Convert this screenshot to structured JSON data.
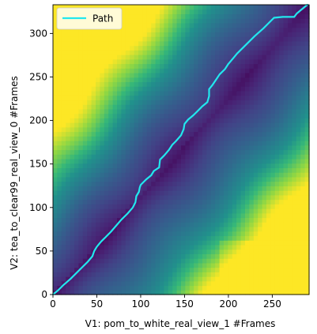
{
  "chart_data": {
    "type": "heatmap",
    "title": "",
    "xlabel": "V1: pom_to_white_real_view_1 #Frames",
    "ylabel": "V2: tea_to_clear99_real_view_0 #Frames",
    "xlim": [
      0,
      292
    ],
    "ylim": [
      0,
      333
    ],
    "x_ticks": [
      0,
      50,
      100,
      150,
      200,
      250
    ],
    "y_ticks": [
      0,
      50,
      100,
      150,
      200,
      250,
      300
    ],
    "legend": {
      "position": "top-left",
      "entries": [
        {
          "label": "Path",
          "color": "#22e8ee"
        }
      ]
    },
    "colormap": "viridis",
    "path": {
      "name": "Path",
      "color": "#22e8ee",
      "points": [
        [
          0,
          0
        ],
        [
          6,
          5
        ],
        [
          12,
          11
        ],
        [
          20,
          18
        ],
        [
          30,
          28
        ],
        [
          40,
          38
        ],
        [
          45,
          44
        ],
        [
          47,
          50
        ],
        [
          50,
          55
        ],
        [
          55,
          61
        ],
        [
          60,
          66
        ],
        [
          66,
          72
        ],
        [
          72,
          79
        ],
        [
          78,
          86
        ],
        [
          85,
          93
        ],
        [
          91,
          100
        ],
        [
          94,
          106
        ],
        [
          95,
          113
        ],
        [
          98,
          118
        ],
        [
          99,
          123
        ],
        [
          100,
          126
        ],
        [
          106,
          132
        ],
        [
          112,
          137
        ],
        [
          115,
          142
        ],
        [
          121,
          146
        ],
        [
          122,
          155
        ],
        [
          127,
          160
        ],
        [
          132,
          166
        ],
        [
          136,
          172
        ],
        [
          140,
          176
        ],
        [
          146,
          183
        ],
        [
          149,
          190
        ],
        [
          150,
          196
        ],
        [
          154,
          201
        ],
        [
          160,
          206
        ],
        [
          165,
          211
        ],
        [
          170,
          216
        ],
        [
          176,
          221
        ],
        [
          178,
          228
        ],
        [
          178,
          236
        ],
        [
          182,
          241
        ],
        [
          186,
          247
        ],
        [
          190,
          253
        ],
        [
          196,
          259
        ],
        [
          200,
          265
        ],
        [
          205,
          271
        ],
        [
          210,
          277
        ],
        [
          220,
          287
        ],
        [
          230,
          297
        ],
        [
          240,
          306
        ],
        [
          248,
          314
        ],
        [
          252,
          318
        ],
        [
          262,
          319
        ],
        [
          275,
          319
        ],
        [
          278,
          323
        ],
        [
          284,
          328
        ],
        [
          290,
          333
        ]
      ]
    }
  }
}
